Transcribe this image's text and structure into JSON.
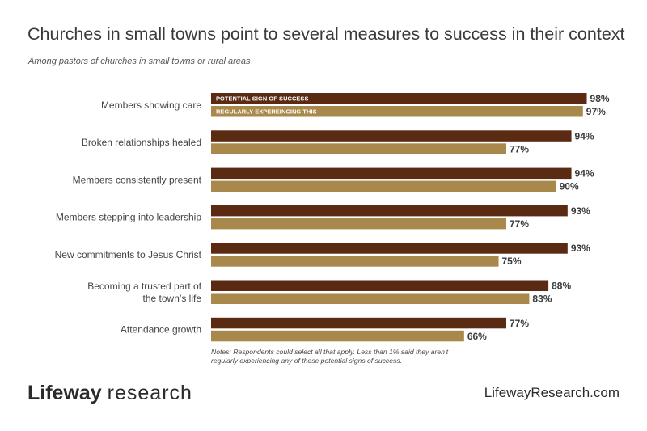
{
  "header": {
    "title": "Churches in small towns point to several measures to success in their context",
    "subtitle": "Among pastors of churches in small towns or rural areas"
  },
  "chart_data": {
    "type": "bar",
    "orientation": "horizontal",
    "categories": [
      [
        "Members showing care"
      ],
      [
        "Broken relationships healed"
      ],
      [
        "Members consistently present"
      ],
      [
        "Members stepping into leadership"
      ],
      [
        "New commitments to Jesus Christ"
      ],
      [
        "Becoming a trusted part of",
        "the town’s life"
      ],
      [
        "Attendance growth"
      ]
    ],
    "series": [
      {
        "name": "POTENTIAL SIGN OF SUCCESS",
        "color": "#5a2a12",
        "values": [
          98,
          94,
          94,
          93,
          93,
          88,
          77
        ]
      },
      {
        "name": "REGULARLY EXPEREINCING THIS",
        "color": "#a9884c",
        "values": [
          97,
          77,
          90,
          77,
          75,
          83,
          66
        ]
      }
    ],
    "value_suffix": "%",
    "xlim": [
      0,
      100
    ],
    "grid": false,
    "legend_placement": "inside-first-bars"
  },
  "notes": "Notes: Respondents could select all that apply. Less than 1% said they aren’t regularly experiencing any of these potential signs of success.",
  "footer": {
    "logo_bold": "Lifeway",
    "logo_light": "research",
    "website": "LifewayResearch.com"
  }
}
